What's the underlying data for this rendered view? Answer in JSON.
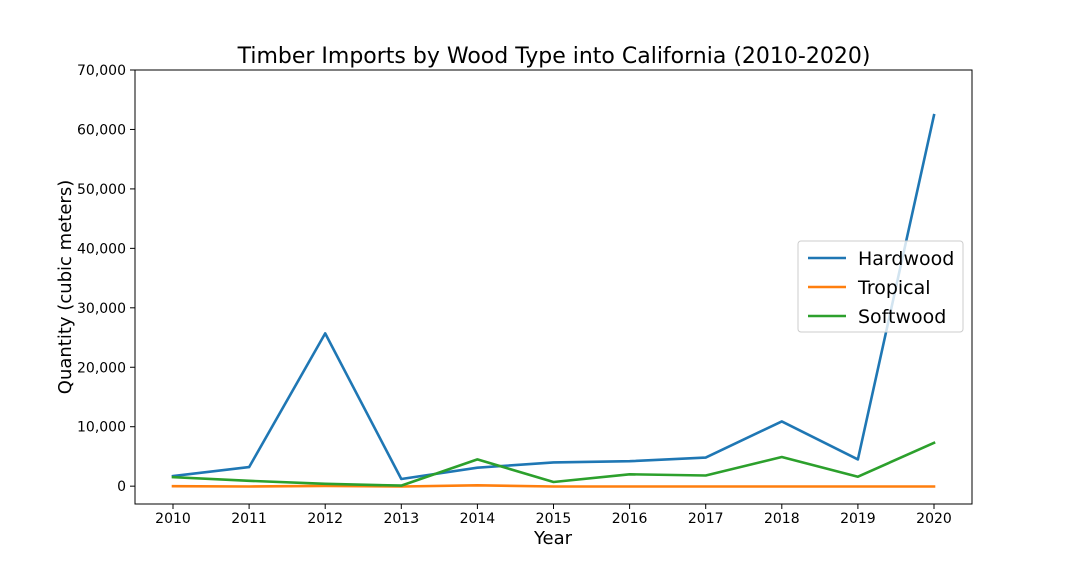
{
  "chart_data": {
    "type": "line",
    "title": "Timber Imports by Wood Type into California (2010-2020)",
    "xlabel": "Year",
    "ylabel": "Quantity (cubic meters)",
    "x": [
      2010,
      2011,
      2012,
      2013,
      2014,
      2015,
      2016,
      2017,
      2018,
      2019,
      2020
    ],
    "x_tick_labels": [
      "2010",
      "2011",
      "2012",
      "2013",
      "2014",
      "2015",
      "2016",
      "2017",
      "2018",
      "2019",
      "2020"
    ],
    "ylim": [
      -3000,
      70000
    ],
    "y_ticks": [
      0,
      10000,
      20000,
      30000,
      40000,
      50000,
      60000,
      70000
    ],
    "y_tick_labels": [
      "0",
      "10,000",
      "20,000",
      "30,000",
      "40,000",
      "50,000",
      "60,000",
      "70,000"
    ],
    "grid": false,
    "legend_position": "center-right",
    "series": [
      {
        "name": "Hardwood",
        "color": "#1f77b4",
        "values": [
          1700,
          3200,
          25700,
          1200,
          3100,
          4000,
          4200,
          4800,
          10900,
          4500,
          62400
        ]
      },
      {
        "name": "Tropical",
        "color": "#ff7f0e",
        "values": [
          0,
          -50,
          50,
          -50,
          150,
          -50,
          -50,
          -50,
          -50,
          -50,
          -50
        ]
      },
      {
        "name": "Softwood",
        "color": "#2ca02c",
        "values": [
          1500,
          900,
          400,
          100,
          4500,
          700,
          2000,
          1800,
          4900,
          1600,
          7300
        ]
      }
    ]
  }
}
